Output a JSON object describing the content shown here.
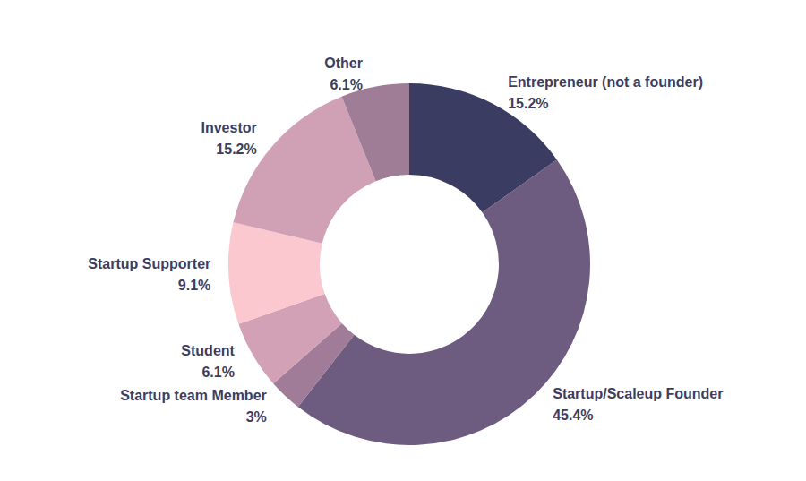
{
  "chart_data": {
    "type": "pie",
    "categories": [
      "Entrepreneur (not a founder)",
      "Startup/Scaleup Founder",
      "Startup team Member",
      "Student",
      "Startup Supporter",
      "Investor",
      "Other"
    ],
    "values": [
      15.2,
      45.4,
      3,
      6.1,
      9.1,
      15.2,
      6.1
    ],
    "value_labels": [
      "15.2%",
      "45.4%",
      "3%",
      "6.1%",
      "9.1%",
      "15.2%",
      "6.1%"
    ],
    "colors": [
      "#3a3c62",
      "#6d5b80",
      "#a07c99",
      "#d3a1b5",
      "#fcc8d0",
      "#d0a1b5",
      "#a07d97"
    ],
    "data_labels": true
  }
}
